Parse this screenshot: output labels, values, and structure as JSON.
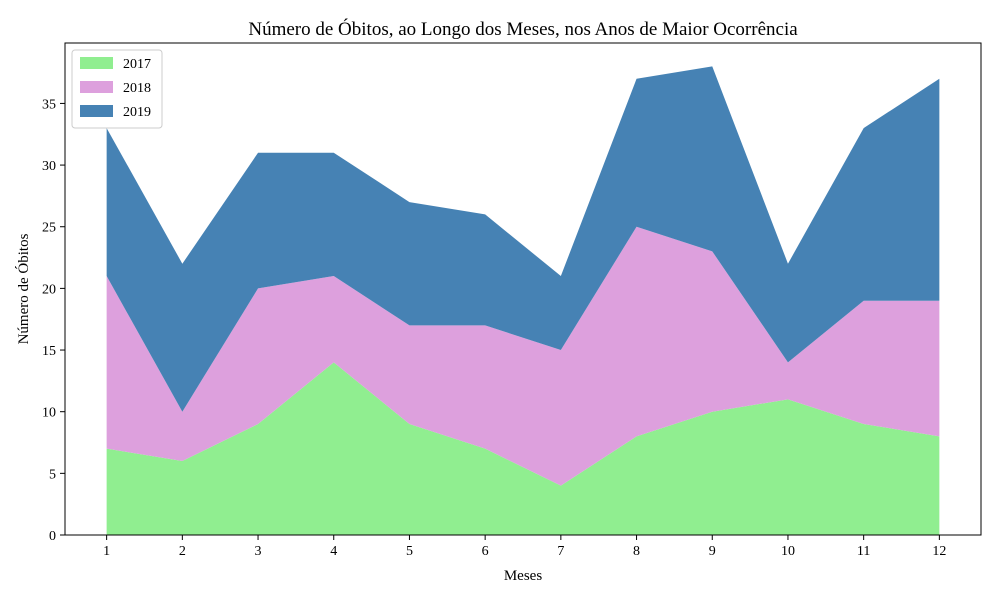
{
  "chart_data": {
    "type": "area",
    "stacked": true,
    "title": "Número de Óbitos, ao Longo dos Meses, nos Anos de Maior Ocorrência",
    "xlabel": "Meses",
    "ylabel": "Número de Óbitos",
    "x": [
      1,
      2,
      3,
      4,
      5,
      6,
      7,
      8,
      9,
      10,
      11,
      12
    ],
    "x_ticks": [
      "1",
      "2",
      "3",
      "4",
      "5",
      "6",
      "7",
      "8",
      "9",
      "10",
      "11",
      "12"
    ],
    "y_ticks": [
      "0",
      "5",
      "10",
      "15",
      "20",
      "25",
      "30",
      "35"
    ],
    "xlim": [
      0.45,
      12.55
    ],
    "ylim": [
      0,
      39.9
    ],
    "grid": false,
    "legend_position": "top-left",
    "series": [
      {
        "name": "2017",
        "color": "#90ee90",
        "values": [
          7,
          6,
          9,
          14,
          9,
          7,
          4,
          8,
          10,
          11,
          9,
          8
        ]
      },
      {
        "name": "2018",
        "color": "#dda0dd",
        "values": [
          14,
          4,
          11,
          7,
          8,
          10,
          11,
          17,
          13,
          3,
          10,
          11
        ]
      },
      {
        "name": "2019",
        "color": "#4682b4",
        "values": [
          12,
          12,
          11,
          10,
          10,
          9,
          6,
          12,
          15,
          8,
          14,
          18
        ]
      }
    ]
  }
}
